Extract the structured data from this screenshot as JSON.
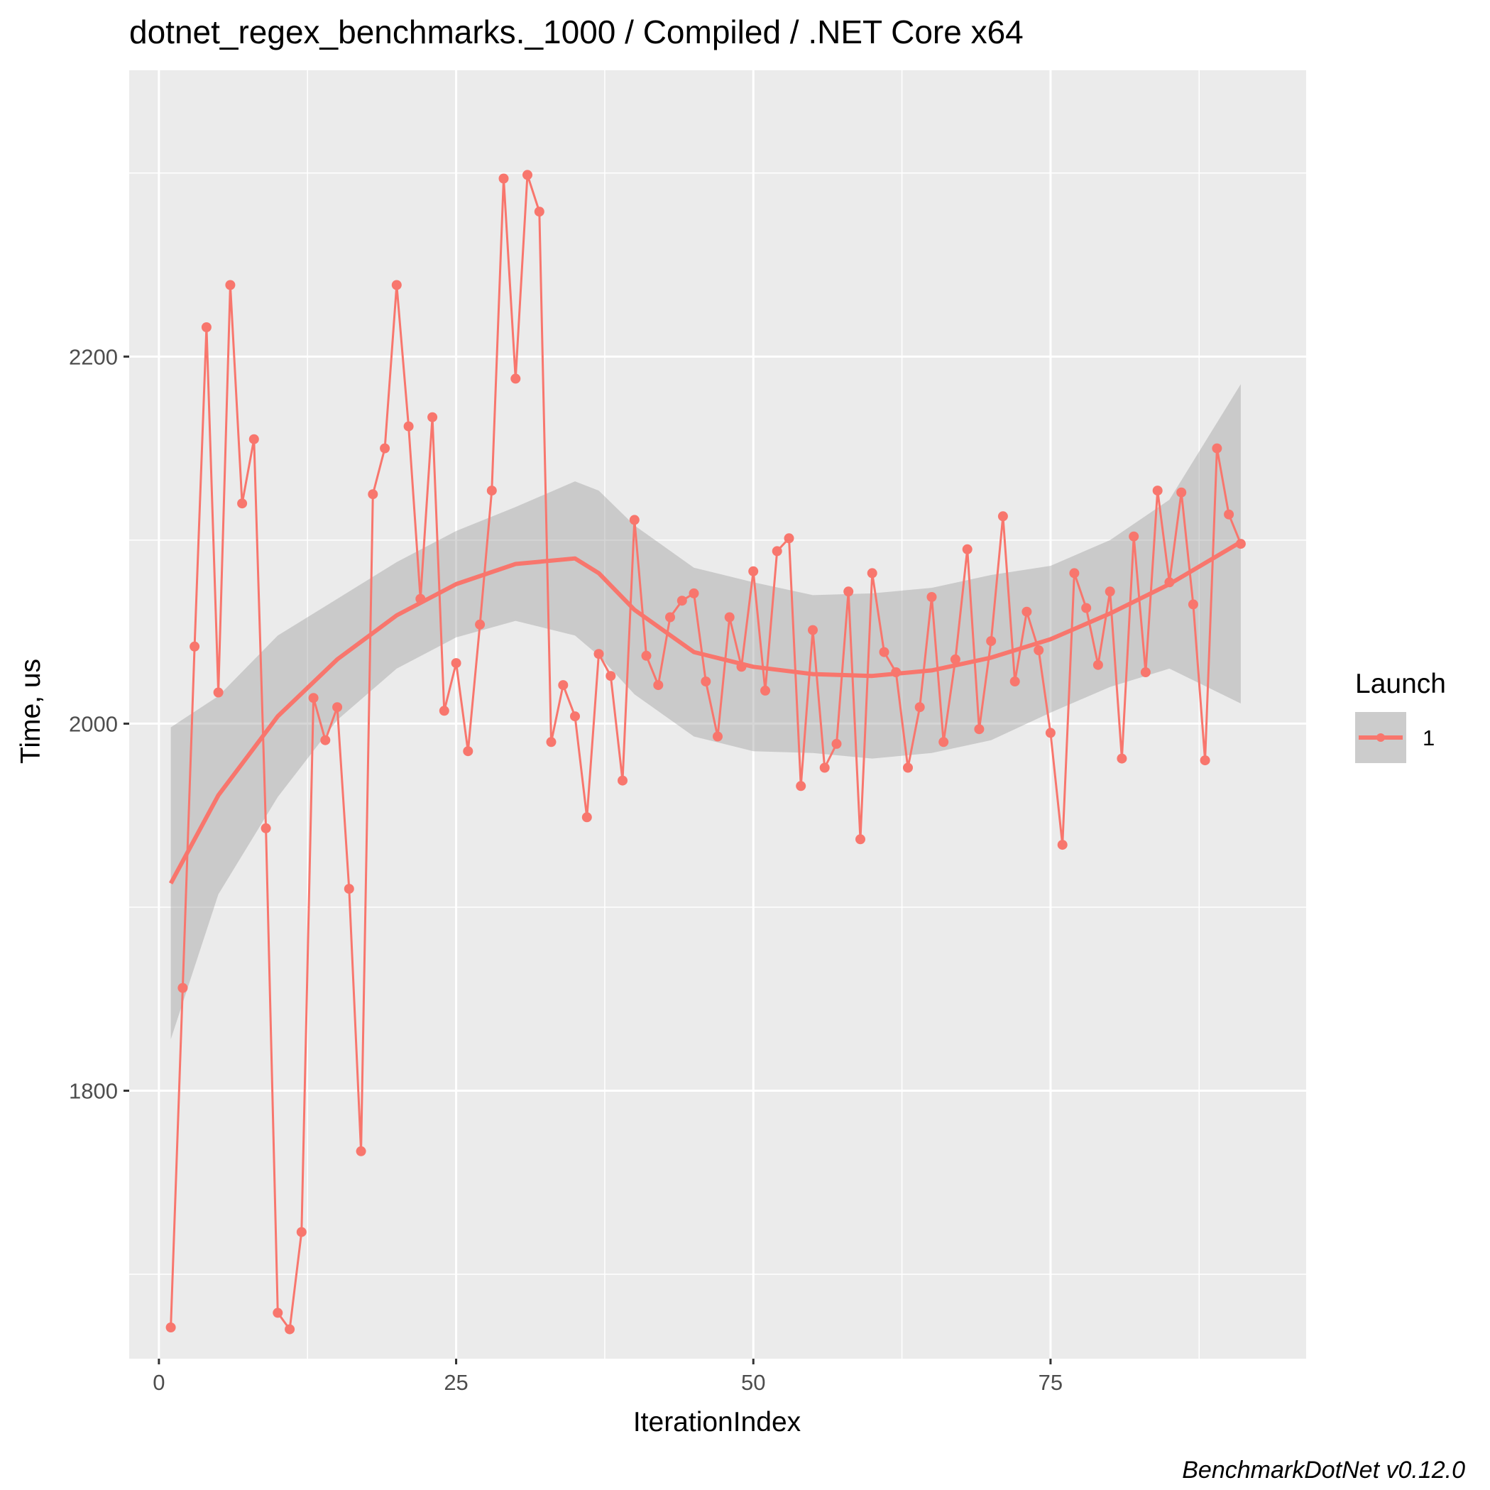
{
  "chart_data": {
    "type": "line",
    "title": "dotnet_regex_benchmarks._1000 / Compiled / .NET Core x64",
    "xlabel": "IterationIndex",
    "ylabel": "Time, us",
    "caption": "BenchmarkDotNet v0.12.0",
    "xlim": [
      -2.5,
      96.5
    ],
    "ylim": [
      1654,
      2356
    ],
    "x_ticks": [
      0,
      25,
      50,
      75
    ],
    "x_tick_labels": [
      "0",
      "25",
      "50",
      "75"
    ],
    "y_ticks": [
      1800,
      2000,
      2200
    ],
    "y_tick_labels": [
      "1800",
      "2000",
      "2200"
    ],
    "y_minor_ticks": [
      1700,
      1900,
      2100,
      2300
    ],
    "grid": true,
    "legend": {
      "title": "Launch",
      "position": "right",
      "entries": [
        "1"
      ]
    },
    "colors": {
      "series": "#F8766D",
      "band": "#999999",
      "panel": "#EBEBEB",
      "grid": "#FFFFFF"
    },
    "series": [
      {
        "name": "1",
        "x": [
          1,
          2,
          3,
          4,
          5,
          6,
          7,
          8,
          9,
          10,
          11,
          12,
          13,
          14,
          15,
          16,
          17,
          18,
          19,
          20,
          21,
          22,
          23,
          24,
          25,
          26,
          27,
          28,
          29,
          30,
          31,
          32,
          33,
          34,
          35,
          36,
          37,
          38,
          39,
          40,
          41,
          42,
          43,
          44,
          45,
          46,
          47,
          48,
          49,
          50,
          51,
          52,
          53,
          54,
          55,
          56,
          57,
          58,
          59,
          60,
          61,
          62,
          63,
          64,
          65,
          66,
          67,
          68,
          69,
          70,
          71,
          72,
          73,
          74,
          75,
          76,
          77,
          78,
          79,
          80,
          81,
          82,
          83,
          84,
          85,
          86,
          87,
          88,
          89,
          90,
          91
        ],
        "y": [
          1671,
          1856,
          2042,
          2216,
          2017,
          2239,
          2120,
          2155,
          1943,
          1679,
          1670,
          1723,
          2014,
          1991,
          2009,
          1910,
          1767,
          2125,
          2150,
          2239,
          2162,
          2068,
          2167,
          2007,
          2033,
          1985,
          2054,
          2127,
          2297,
          2188,
          2299,
          2279,
          1990,
          2021,
          2004,
          1949,
          2038,
          2026,
          1969,
          2111,
          2037,
          2021,
          2058,
          2067,
          2071,
          2023,
          1993,
          2058,
          2031,
          2083,
          2018,
          2094,
          2101,
          1966,
          2051,
          1976,
          1989,
          2072,
          1937,
          2082,
          2039,
          2028,
          1976,
          2009,
          2069,
          1990,
          2035,
          2095,
          1997,
          2045,
          2113,
          2023,
          2061,
          2040,
          1995,
          1934,
          2082,
          2063,
          2032,
          2072,
          1981,
          2102,
          2028,
          2127,
          2077,
          2126,
          2065,
          1980,
          2150,
          2114,
          2098
        ]
      }
    ],
    "smooth": {
      "x": [
        1,
        5,
        10,
        15,
        20,
        25,
        30,
        35,
        37,
        40,
        45,
        50,
        55,
        60,
        65,
        70,
        75,
        80,
        85,
        91
      ],
      "y": [
        1913,
        1961,
        2004,
        2035,
        2059,
        2076,
        2087,
        2090,
        2082,
        2062,
        2039,
        2031,
        2027,
        2026,
        2029,
        2036,
        2046,
        2060,
        2076,
        2099
      ],
      "lower": [
        1828,
        1907,
        1960,
        2002,
        2030,
        2047,
        2056,
        2048,
        2037,
        2016,
        1993,
        1985,
        1984,
        1981,
        1984,
        1991,
        2006,
        2020,
        2030,
        2011
      ],
      "upper": [
        1998,
        2015,
        2048,
        2068,
        2088,
        2105,
        2118,
        2132,
        2127,
        2108,
        2085,
        2077,
        2070,
        2071,
        2074,
        2081,
        2086,
        2100,
        2122,
        2185
      ]
    }
  }
}
